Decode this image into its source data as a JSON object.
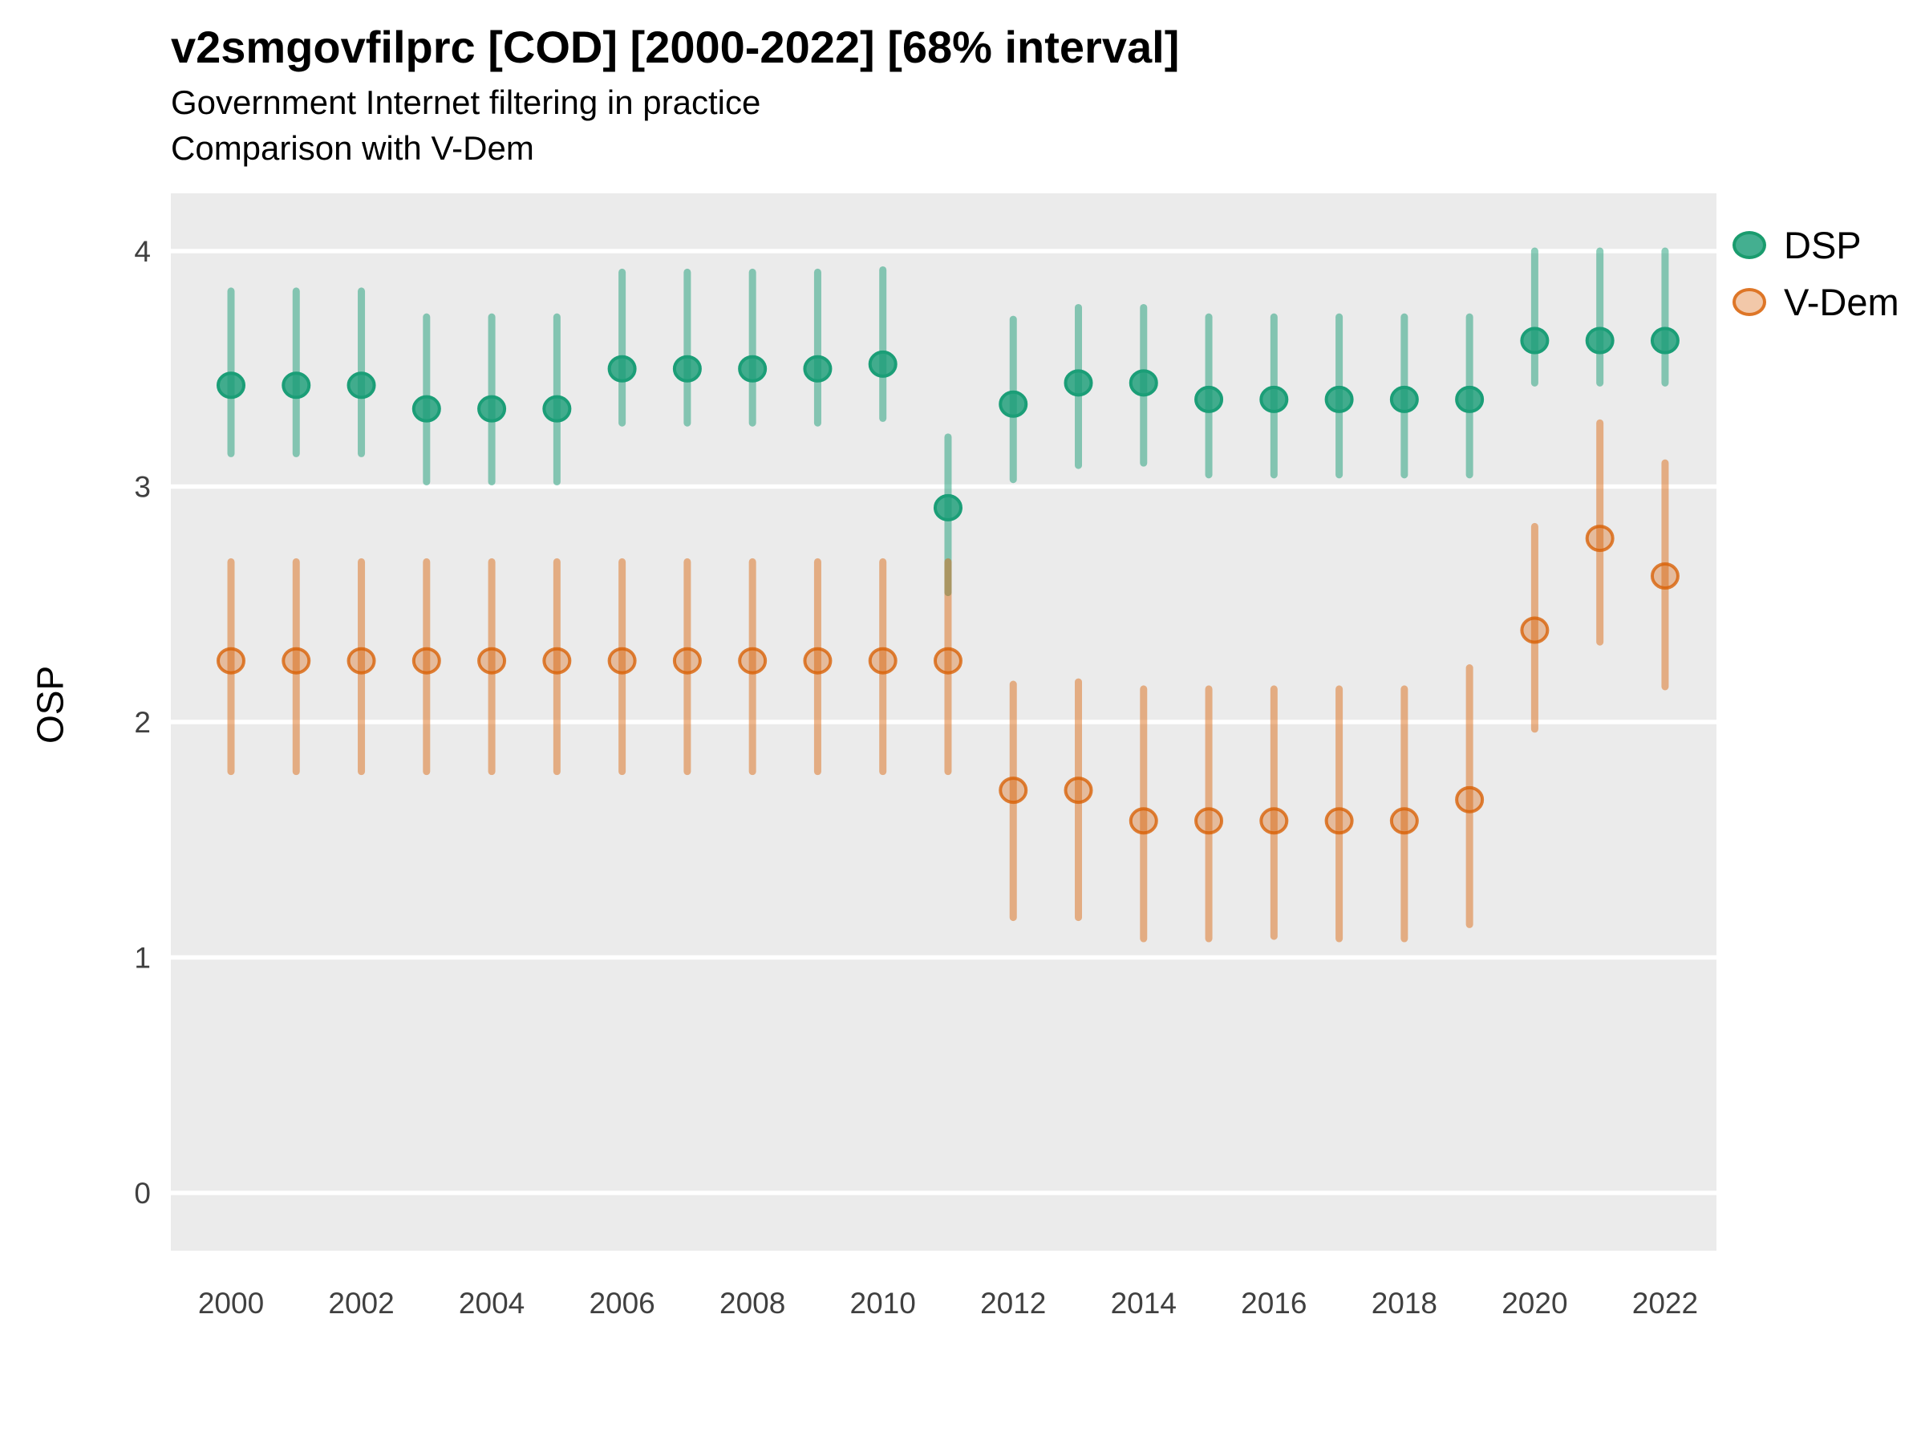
{
  "header": {
    "title": "v2smgovfilprc [COD] [2000-2022] [68% interval]",
    "subtitle_line1": "Government Internet filtering in practice",
    "subtitle_line2": "Comparison with V-Dem"
  },
  "colors": {
    "dsp": "#1B9E77",
    "vdem": "#D95F02",
    "panel_background": "#EBEBEB",
    "gridline": "#FFFFFF",
    "tick_label": "#404040"
  },
  "chart_data": {
    "type": "pointrange",
    "title": "v2smgovfilprc [COD] [2000-2022] [68% interval]",
    "subtitle_lines": [
      "Government Internet filtering in practice",
      "Comparison with V-Dem"
    ],
    "xlabel": "",
    "ylabel": "OSP",
    "interval": "68%",
    "ylim": [
      0,
      4
    ],
    "yticks": [
      0,
      1,
      2,
      3,
      4
    ],
    "xticks": [
      2000,
      2002,
      2004,
      2006,
      2008,
      2010,
      2012,
      2014,
      2016,
      2018,
      2020,
      2022
    ],
    "legend_position": "right",
    "grid": "major-horizontal",
    "series": [
      {
        "name": "DSP",
        "color": "#1B9E77",
        "points": [
          {
            "year": 2000,
            "est": 3.43,
            "lo": 3.14,
            "hi": 3.83
          },
          {
            "year": 2001,
            "est": 3.43,
            "lo": 3.14,
            "hi": 3.83
          },
          {
            "year": 2002,
            "est": 3.43,
            "lo": 3.14,
            "hi": 3.83
          },
          {
            "year": 2003,
            "est": 3.33,
            "lo": 3.02,
            "hi": 3.72
          },
          {
            "year": 2004,
            "est": 3.33,
            "lo": 3.02,
            "hi": 3.72
          },
          {
            "year": 2005,
            "est": 3.33,
            "lo": 3.02,
            "hi": 3.72
          },
          {
            "year": 2006,
            "est": 3.5,
            "lo": 3.27,
            "hi": 3.91
          },
          {
            "year": 2007,
            "est": 3.5,
            "lo": 3.27,
            "hi": 3.91
          },
          {
            "year": 2008,
            "est": 3.5,
            "lo": 3.27,
            "hi": 3.91
          },
          {
            "year": 2009,
            "est": 3.5,
            "lo": 3.27,
            "hi": 3.91
          },
          {
            "year": 2010,
            "est": 3.52,
            "lo": 3.29,
            "hi": 3.92
          },
          {
            "year": 2011,
            "est": 2.91,
            "lo": 2.55,
            "hi": 3.21
          },
          {
            "year": 2012,
            "est": 3.35,
            "lo": 3.03,
            "hi": 3.71
          },
          {
            "year": 2013,
            "est": 3.44,
            "lo": 3.09,
            "hi": 3.76
          },
          {
            "year": 2014,
            "est": 3.44,
            "lo": 3.1,
            "hi": 3.76
          },
          {
            "year": 2015,
            "est": 3.37,
            "lo": 3.05,
            "hi": 3.72
          },
          {
            "year": 2016,
            "est": 3.37,
            "lo": 3.05,
            "hi": 3.72
          },
          {
            "year": 2017,
            "est": 3.37,
            "lo": 3.05,
            "hi": 3.72
          },
          {
            "year": 2018,
            "est": 3.37,
            "lo": 3.05,
            "hi": 3.72
          },
          {
            "year": 2019,
            "est": 3.37,
            "lo": 3.05,
            "hi": 3.72
          },
          {
            "year": 2020,
            "est": 3.62,
            "lo": 3.44,
            "hi": 4.0
          },
          {
            "year": 2021,
            "est": 3.62,
            "lo": 3.44,
            "hi": 4.0
          },
          {
            "year": 2022,
            "est": 3.62,
            "lo": 3.44,
            "hi": 4.0
          }
        ]
      },
      {
        "name": "V-Dem",
        "color": "#D95F02",
        "points": [
          {
            "year": 2000,
            "est": 2.26,
            "lo": 1.79,
            "hi": 2.68
          },
          {
            "year": 2001,
            "est": 2.26,
            "lo": 1.79,
            "hi": 2.68
          },
          {
            "year": 2002,
            "est": 2.26,
            "lo": 1.79,
            "hi": 2.68
          },
          {
            "year": 2003,
            "est": 2.26,
            "lo": 1.79,
            "hi": 2.68
          },
          {
            "year": 2004,
            "est": 2.26,
            "lo": 1.79,
            "hi": 2.68
          },
          {
            "year": 2005,
            "est": 2.26,
            "lo": 1.79,
            "hi": 2.68
          },
          {
            "year": 2006,
            "est": 2.26,
            "lo": 1.79,
            "hi": 2.68
          },
          {
            "year": 2007,
            "est": 2.26,
            "lo": 1.79,
            "hi": 2.68
          },
          {
            "year": 2008,
            "est": 2.26,
            "lo": 1.79,
            "hi": 2.68
          },
          {
            "year": 2009,
            "est": 2.26,
            "lo": 1.79,
            "hi": 2.68
          },
          {
            "year": 2010,
            "est": 2.26,
            "lo": 1.79,
            "hi": 2.68
          },
          {
            "year": 2011,
            "est": 2.26,
            "lo": 1.79,
            "hi": 2.68
          },
          {
            "year": 2012,
            "est": 1.71,
            "lo": 1.17,
            "hi": 2.16
          },
          {
            "year": 2013,
            "est": 1.71,
            "lo": 1.17,
            "hi": 2.17
          },
          {
            "year": 2014,
            "est": 1.58,
            "lo": 1.08,
            "hi": 2.14
          },
          {
            "year": 2015,
            "est": 1.58,
            "lo": 1.08,
            "hi": 2.14
          },
          {
            "year": 2016,
            "est": 1.58,
            "lo": 1.09,
            "hi": 2.14
          },
          {
            "year": 2017,
            "est": 1.58,
            "lo": 1.08,
            "hi": 2.14
          },
          {
            "year": 2018,
            "est": 1.58,
            "lo": 1.08,
            "hi": 2.14
          },
          {
            "year": 2019,
            "est": 1.67,
            "lo": 1.14,
            "hi": 2.23
          },
          {
            "year": 2020,
            "est": 2.39,
            "lo": 1.97,
            "hi": 2.83
          },
          {
            "year": 2021,
            "est": 2.78,
            "lo": 2.34,
            "hi": 3.27
          },
          {
            "year": 2022,
            "est": 2.62,
            "lo": 2.15,
            "hi": 3.1
          }
        ]
      }
    ]
  }
}
